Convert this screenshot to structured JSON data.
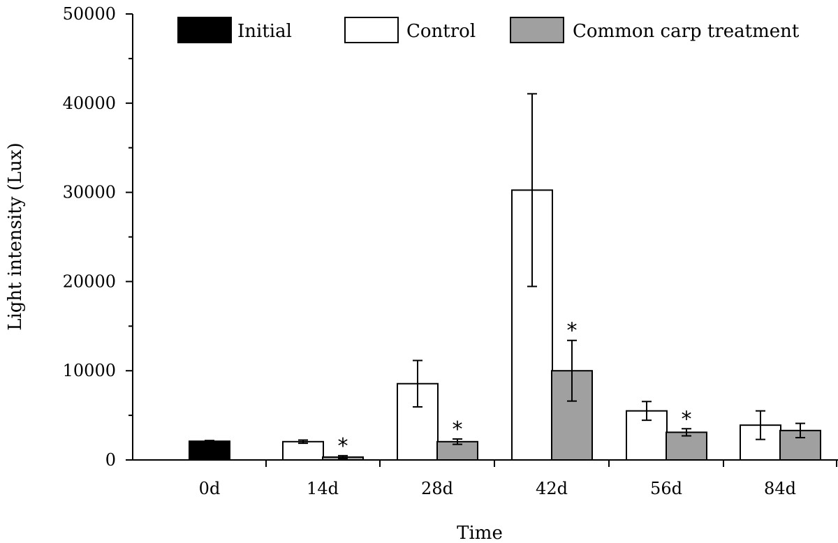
{
  "chart_data": {
    "type": "bar",
    "xlabel": "Time",
    "ylabel": "Light intensity (Lux)",
    "ylim": [
      0,
      50000
    ],
    "yticks": [
      "0",
      "10000",
      "20000",
      "30000",
      "40000",
      "50000"
    ],
    "categories": [
      "0d",
      "14d",
      "28d",
      "42d",
      "56d",
      "84d"
    ],
    "legend_position": "top",
    "significance_marker": "*",
    "series": [
      {
        "name": "Initial",
        "color": "#000000",
        "values": [
          2100,
          null,
          null,
          null,
          null,
          null
        ],
        "errors": [
          80,
          null,
          null,
          null,
          null,
          null
        ],
        "significant": [
          false,
          false,
          false,
          false,
          false,
          false
        ]
      },
      {
        "name": "Control",
        "color": "#ffffff",
        "values": [
          null,
          2050,
          8550,
          30250,
          5500,
          3900
        ],
        "errors": [
          null,
          180,
          2600,
          10800,
          1050,
          1600
        ],
        "significant": [
          false,
          false,
          false,
          false,
          false,
          false
        ]
      },
      {
        "name": "Common carp treatment",
        "color": "#a0a0a0",
        "values": [
          null,
          320,
          2050,
          10000,
          3100,
          3300
        ],
        "errors": [
          null,
          160,
          300,
          3400,
          400,
          800
        ],
        "significant": [
          false,
          true,
          true,
          true,
          true,
          false
        ]
      }
    ]
  }
}
